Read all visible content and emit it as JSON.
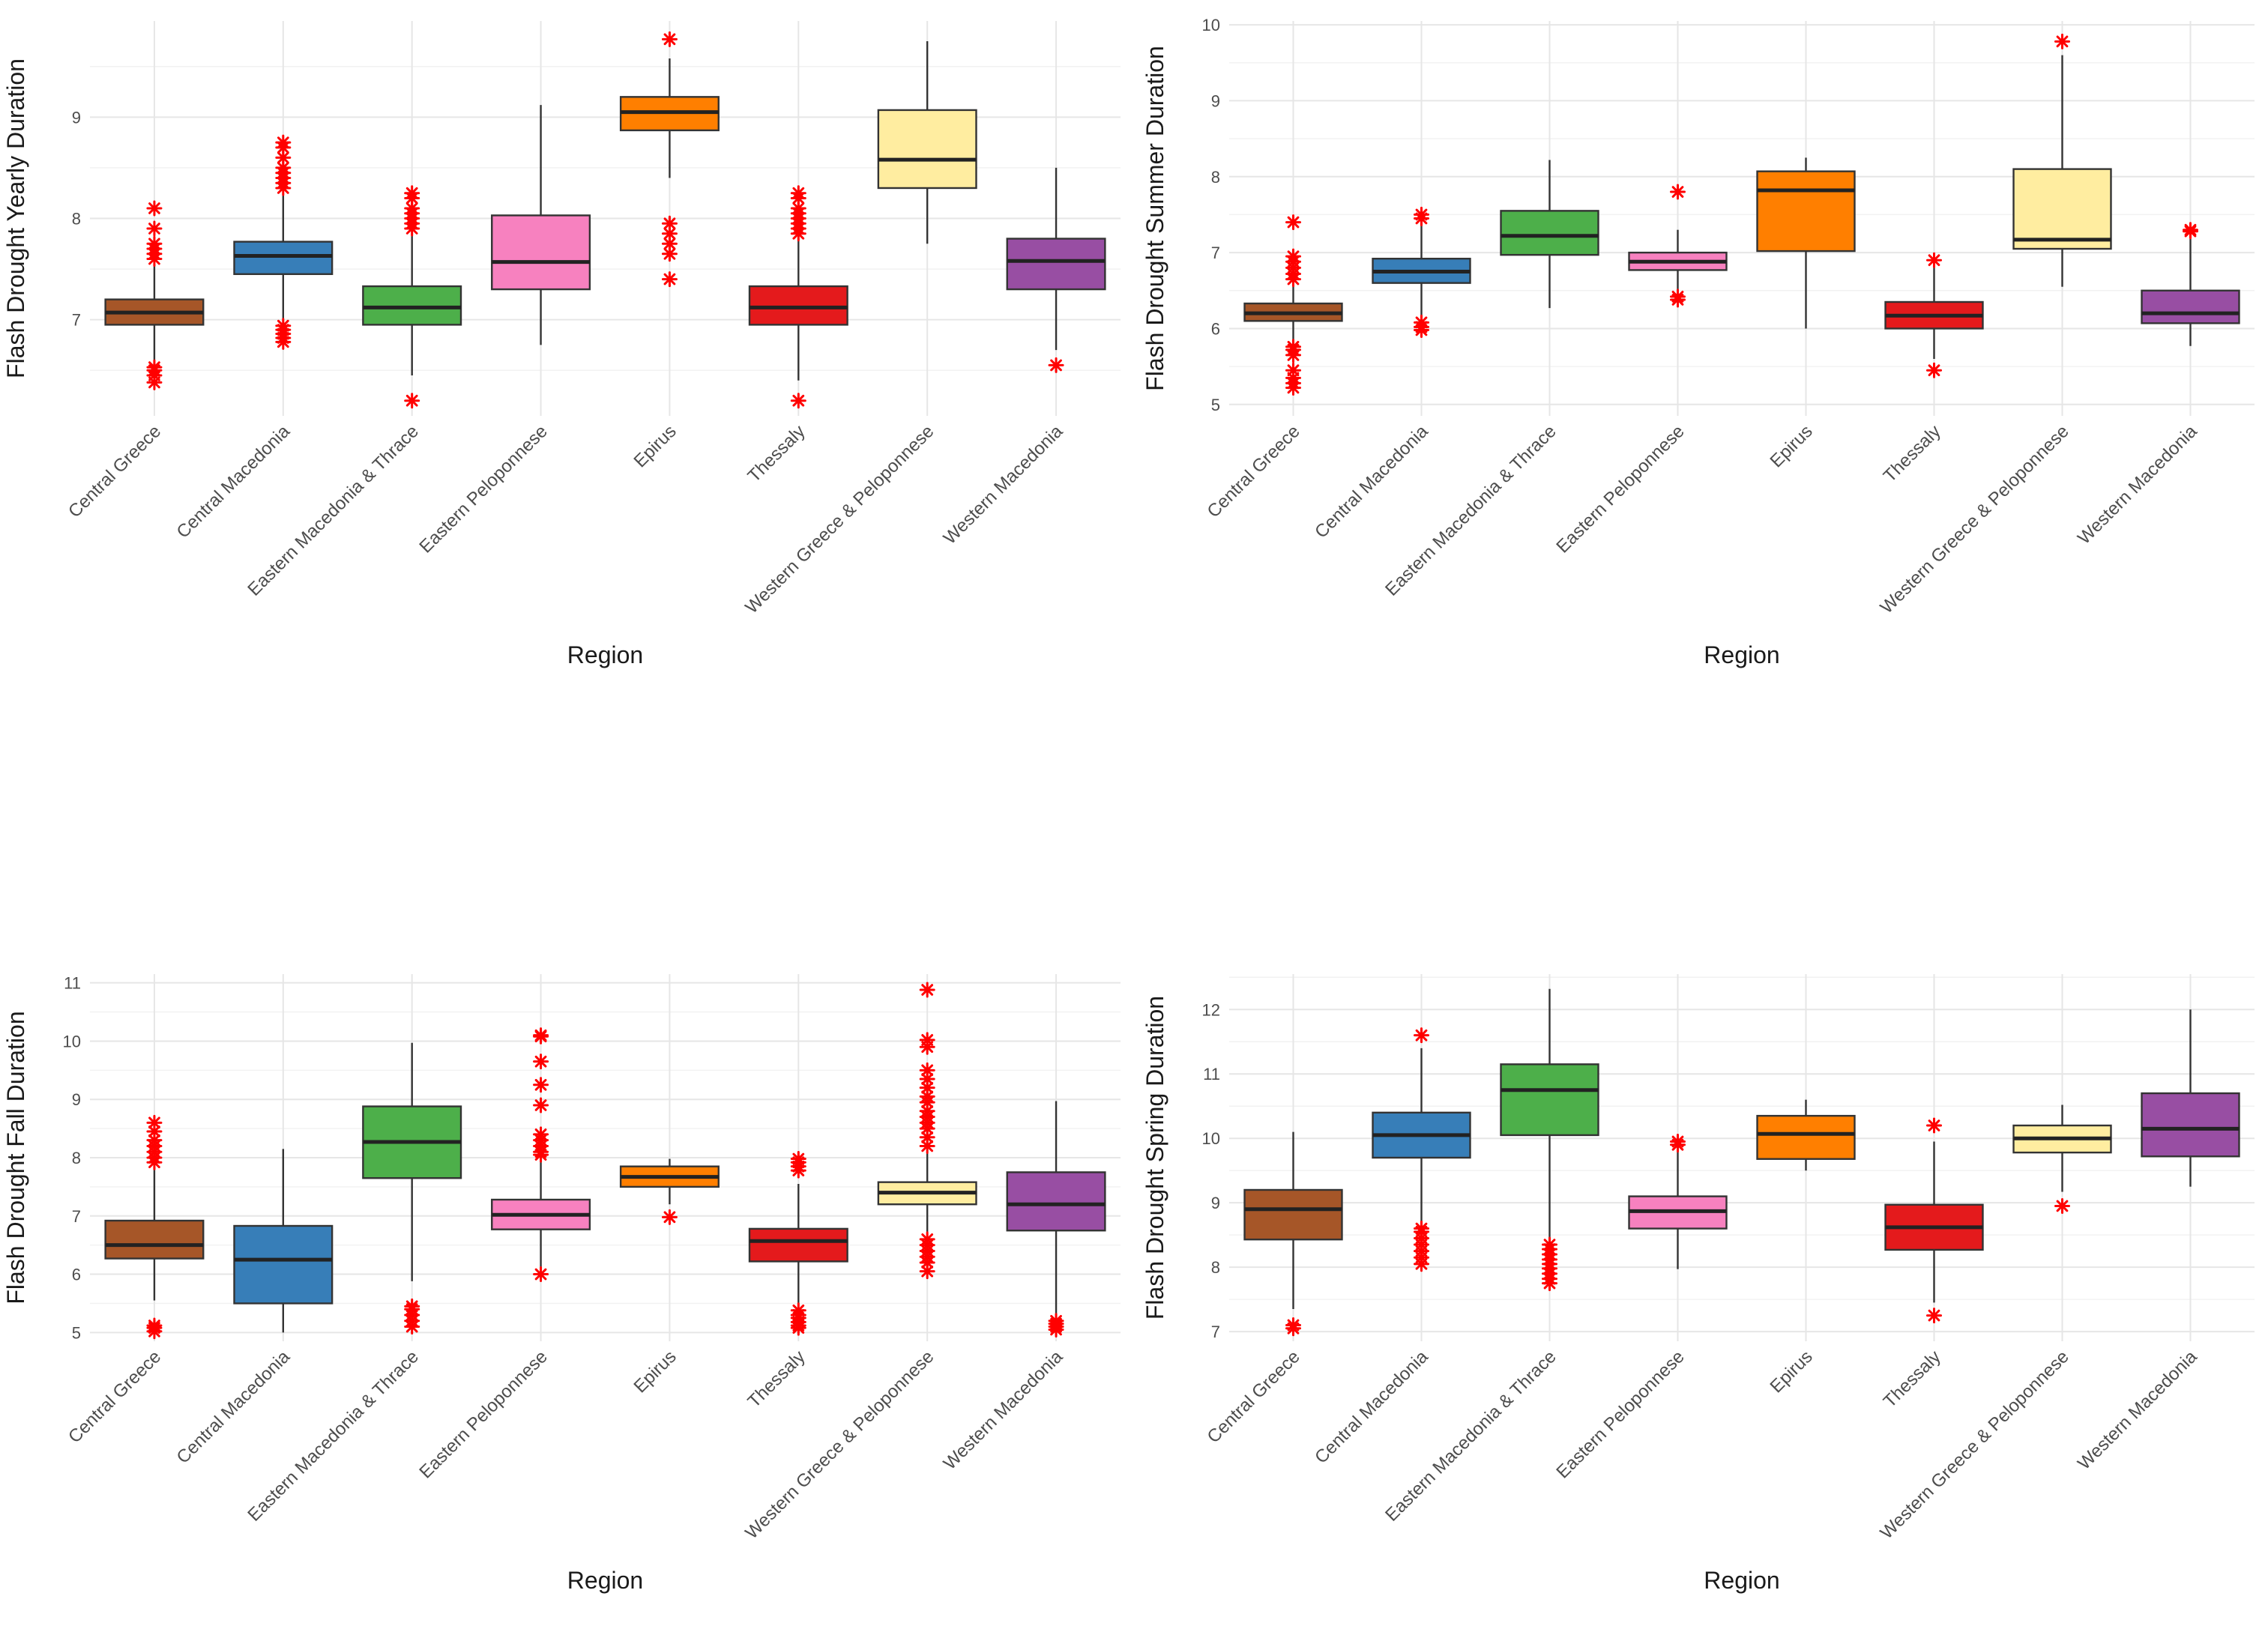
{
  "colors": {
    "Central Greece": "#a65628",
    "Central Macedonia": "#377eb8",
    "Eastern Macedonia & Thrace": "#4daf4a",
    "Eastern Peloponnese": "#f781bf",
    "Epirus": "#ff7f00",
    "Thessaly": "#e41a1c",
    "Western Greece & Peloponnese": "#ffeda0",
    "Western Macedonia": "#984ea3",
    "outlier": "#ff0000"
  },
  "chart_data": [
    {
      "type": "box",
      "ylabel": "Flash Drought Yearly Duration",
      "xlabel": "Region",
      "ylim": [
        6.05,
        9.95
      ],
      "yticks": [
        7,
        8,
        9
      ],
      "categories": [
        "Central Greece",
        "Central Macedonia",
        "Eastern Macedonia & Thrace",
        "Eastern Peloponnese",
        "Epirus",
        "Thessaly",
        "Western Greece & Peloponnese",
        "Western Macedonia"
      ],
      "boxes": [
        {
          "min": 6.6,
          "q1": 6.95,
          "median": 7.07,
          "q3": 7.2,
          "max": 7.55,
          "outliers": [
            6.38,
            6.45,
            6.5,
            6.53,
            7.6,
            7.65,
            7.7,
            7.75,
            7.9,
            8.1
          ]
        },
        {
          "min": 6.98,
          "q1": 7.45,
          "median": 7.63,
          "q3": 7.77,
          "max": 8.25,
          "outliers": [
            6.78,
            6.82,
            6.86,
            6.9,
            6.94,
            8.3,
            8.35,
            8.4,
            8.45,
            8.5,
            8.6,
            8.7,
            8.75
          ]
        },
        {
          "min": 6.45,
          "q1": 6.95,
          "median": 7.12,
          "q3": 7.33,
          "max": 7.85,
          "outliers": [
            6.2,
            7.9,
            7.95,
            8.0,
            8.05,
            8.1,
            8.2,
            8.25
          ]
        },
        {
          "min": 6.75,
          "q1": 7.3,
          "median": 7.57,
          "q3": 8.03,
          "max": 9.12,
          "outliers": []
        },
        {
          "min": 8.4,
          "q1": 8.87,
          "median": 9.05,
          "q3": 9.2,
          "max": 9.58,
          "outliers": [
            7.4,
            7.65,
            7.75,
            7.85,
            7.95,
            9.77
          ]
        },
        {
          "min": 6.4,
          "q1": 6.95,
          "median": 7.12,
          "q3": 7.33,
          "max": 7.8,
          "outliers": [
            6.2,
            7.85,
            7.9,
            7.95,
            8.0,
            8.05,
            8.1,
            8.2,
            8.25
          ]
        },
        {
          "min": 7.75,
          "q1": 8.3,
          "median": 8.58,
          "q3": 9.07,
          "max": 9.75,
          "outliers": []
        },
        {
          "min": 6.7,
          "q1": 7.3,
          "median": 7.58,
          "q3": 7.8,
          "max": 8.5,
          "outliers": [
            6.55
          ]
        }
      ]
    },
    {
      "type": "box",
      "ylabel": "Flash Drought Summer Duration",
      "xlabel": "Region",
      "ylim": [
        4.85,
        10.05
      ],
      "yticks": [
        5,
        6,
        7,
        8,
        9,
        10
      ],
      "categories": [
        "Central Greece",
        "Central Macedonia",
        "Eastern Macedonia & Thrace",
        "Eastern Peloponnese",
        "Epirus",
        "Thessaly",
        "Western Greece & Peloponnese",
        "Western Macedonia"
      ],
      "boxes": [
        {
          "min": 5.85,
          "q1": 6.1,
          "median": 6.2,
          "q3": 6.33,
          "max": 6.6,
          "outliers": [
            5.22,
            5.28,
            5.35,
            5.45,
            5.65,
            5.72,
            5.76,
            6.65,
            6.72,
            6.8,
            6.88,
            6.95,
            7.4
          ]
        },
        {
          "min": 6.1,
          "q1": 6.6,
          "median": 6.75,
          "q3": 6.92,
          "max": 7.4,
          "outliers": [
            5.98,
            6.02,
            6.08,
            7.45,
            7.5
          ]
        },
        {
          "min": 6.27,
          "q1": 6.97,
          "median": 7.22,
          "q3": 7.55,
          "max": 8.22,
          "outliers": []
        },
        {
          "min": 6.45,
          "q1": 6.77,
          "median": 6.88,
          "q3": 7.0,
          "max": 7.3,
          "outliers": [
            6.38,
            6.42,
            7.8
          ]
        },
        {
          "min": 6.0,
          "q1": 7.02,
          "median": 7.82,
          "q3": 8.07,
          "max": 8.25,
          "outliers": []
        },
        {
          "min": 5.6,
          "q1": 6.0,
          "median": 6.17,
          "q3": 6.35,
          "max": 6.85,
          "outliers": [
            5.45,
            6.9
          ]
        },
        {
          "min": 6.55,
          "q1": 7.05,
          "median": 7.17,
          "q3": 8.1,
          "max": 9.6,
          "outliers": [
            9.78
          ]
        },
        {
          "min": 5.77,
          "q1": 6.07,
          "median": 6.2,
          "q3": 6.5,
          "max": 7.18,
          "outliers": [
            7.28,
            7.3
          ]
        }
      ]
    },
    {
      "type": "box",
      "ylabel": "Flash Drought Fall Duration",
      "xlabel": "Region",
      "ylim": [
        4.85,
        11.15
      ],
      "yticks": [
        5,
        6,
        7,
        8,
        9,
        10,
        11
      ],
      "categories": [
        "Central Greece",
        "Central Macedonia",
        "Eastern Macedonia & Thrace",
        "Eastern Peloponnese",
        "Epirus",
        "Thessaly",
        "Western Greece & Peloponnese",
        "Western Macedonia"
      ],
      "boxes": [
        {
          "min": 5.55,
          "q1": 6.27,
          "median": 6.5,
          "q3": 6.92,
          "max": 7.88,
          "outliers": [
            5.02,
            5.08,
            5.12,
            7.92,
            8.0,
            8.1,
            8.2,
            8.3,
            8.45,
            8.6
          ]
        },
        {
          "min": 5.0,
          "q1": 5.5,
          "median": 6.25,
          "q3": 6.83,
          "max": 8.15,
          "outliers": []
        },
        {
          "min": 5.88,
          "q1": 7.65,
          "median": 8.27,
          "q3": 8.88,
          "max": 9.97,
          "outliers": [
            5.1,
            5.2,
            5.3,
            5.4,
            5.45
          ]
        },
        {
          "min": 6.1,
          "q1": 6.77,
          "median": 7.02,
          "q3": 7.28,
          "max": 7.95,
          "outliers": [
            6.0,
            8.05,
            8.1,
            8.2,
            8.3,
            8.4,
            8.9,
            9.25,
            9.65,
            10.08,
            10.1
          ]
        },
        {
          "min": 7.2,
          "q1": 7.5,
          "median": 7.67,
          "q3": 7.85,
          "max": 7.98,
          "outliers": [
            6.98
          ]
        },
        {
          "min": 5.45,
          "q1": 6.22,
          "median": 6.57,
          "q3": 6.78,
          "max": 7.55,
          "outliers": [
            5.08,
            5.12,
            5.18,
            5.25,
            5.3,
            5.38,
            7.78,
            7.85,
            7.92,
            7.98
          ]
        },
        {
          "min": 6.65,
          "q1": 7.2,
          "median": 7.4,
          "q3": 7.58,
          "max": 8.12,
          "outliers": [
            6.05,
            6.2,
            6.3,
            6.4,
            6.5,
            6.6,
            8.2,
            8.35,
            8.5,
            8.6,
            8.7,
            8.8,
            8.95,
            9.05,
            9.2,
            9.35,
            9.5,
            9.9,
            10.02,
            10.88
          ]
        },
        {
          "min": 5.3,
          "q1": 6.75,
          "median": 7.2,
          "q3": 7.75,
          "max": 8.97,
          "outliers": [
            5.05,
            5.1,
            5.15,
            5.2
          ]
        }
      ]
    },
    {
      "type": "box",
      "ylabel": "Flash Drought Spring Duration",
      "xlabel": "Region",
      "ylim": [
        6.85,
        12.55
      ],
      "yticks": [
        7,
        8,
        9,
        10,
        11,
        12
      ],
      "categories": [
        "Central Greece",
        "Central Macedonia",
        "Eastern Macedonia & Thrace",
        "Eastern Peloponnese",
        "Epirus",
        "Thessaly",
        "Western Greece & Peloponnese",
        "Western Macedonia"
      ],
      "boxes": [
        {
          "min": 7.35,
          "q1": 8.43,
          "median": 8.9,
          "q3": 9.2,
          "max": 10.1,
          "outliers": [
            7.05,
            7.1
          ]
        },
        {
          "min": 8.7,
          "q1": 9.7,
          "median": 10.05,
          "q3": 10.4,
          "max": 11.4,
          "outliers": [
            8.05,
            8.15,
            8.25,
            8.35,
            8.45,
            8.55,
            8.6,
            11.6
          ]
        },
        {
          "min": 8.4,
          "q1": 10.05,
          "median": 10.75,
          "q3": 11.15,
          "max": 12.32,
          "outliers": [
            7.75,
            7.82,
            7.9,
            7.98,
            8.05,
            8.12,
            8.2,
            8.28,
            8.35
          ]
        },
        {
          "min": 7.97,
          "q1": 8.6,
          "median": 8.87,
          "q3": 9.1,
          "max": 9.85,
          "outliers": [
            9.9,
            9.95
          ]
        },
        {
          "min": 9.5,
          "q1": 9.68,
          "median": 10.07,
          "q3": 10.35,
          "max": 10.6,
          "outliers": []
        },
        {
          "min": 7.45,
          "q1": 8.27,
          "median": 8.62,
          "q3": 8.97,
          "max": 9.95,
          "outliers": [
            7.25,
            10.2
          ]
        },
        {
          "min": 9.17,
          "q1": 9.78,
          "median": 10.0,
          "q3": 10.2,
          "max": 10.52,
          "outliers": [
            8.95
          ]
        },
        {
          "min": 9.25,
          "q1": 9.72,
          "median": 10.15,
          "q3": 10.7,
          "max": 12.0,
          "outliers": []
        }
      ]
    }
  ]
}
